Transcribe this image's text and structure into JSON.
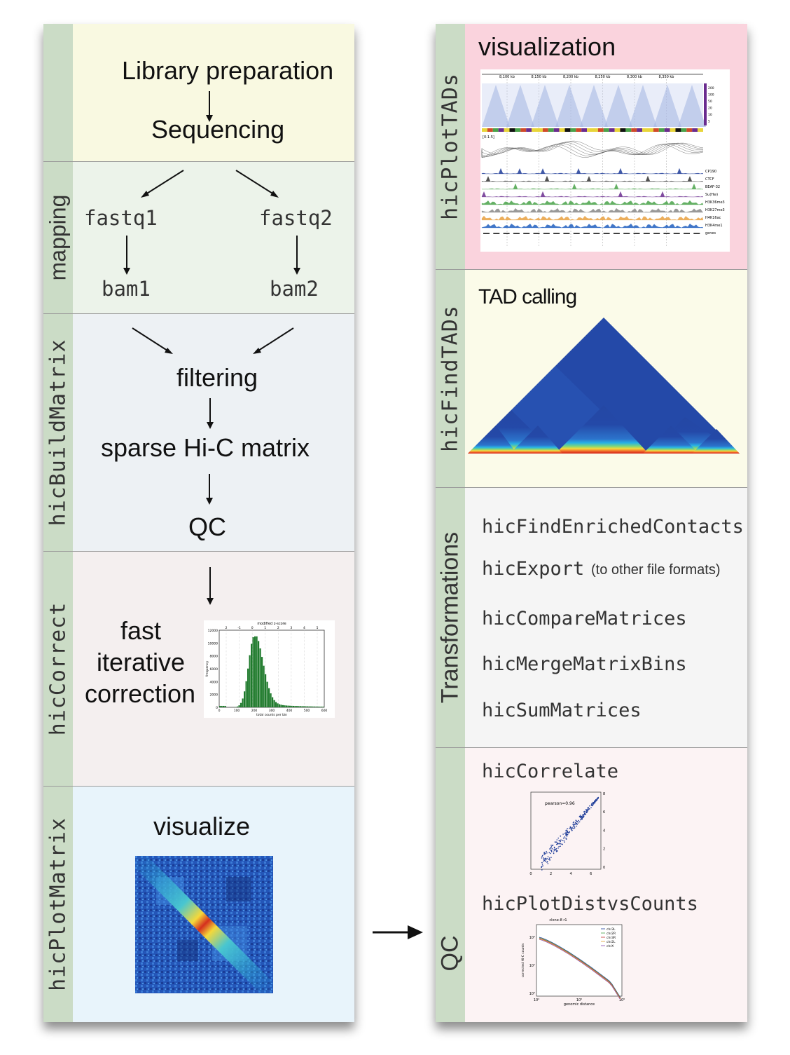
{
  "left": {
    "library": {
      "line1": "Library preparation",
      "line2": "Sequencing"
    },
    "mapping": {
      "label": "mapping",
      "fastq1": "fastq1",
      "fastq2": "fastq2",
      "bam1": "bam1",
      "bam2": "bam2"
    },
    "build": {
      "label": "hicBuildMatrix",
      "filtering": "filtering",
      "sparse": "sparse Hi-C matrix",
      "qc": "QC"
    },
    "correct": {
      "label": "hicCorrect",
      "line1": "fast",
      "line2": "iterative",
      "line3": "correction",
      "histogram": {
        "top_axis": "modified z-score",
        "top_ticks": [
          "2",
          "-1",
          "0",
          "1",
          "2",
          "3",
          "4",
          "5"
        ],
        "y_ticks": [
          "12000",
          "10000",
          "8000",
          "6000",
          "4000",
          "2000",
          "0"
        ],
        "x_ticks": [
          "0",
          "100",
          "200",
          "300",
          "400",
          "500",
          "600"
        ],
        "ylabel": "frequency",
        "xlabel": "total counts per bin"
      }
    },
    "plotmatrix": {
      "label": "hicPlotMatrix",
      "title": "visualize"
    }
  },
  "right": {
    "plottads": {
      "label": "hicPlotTADs",
      "title": "visualization",
      "browser": {
        "coords": [
          "8,100 kb",
          "8,150 kb",
          "8,200 kb",
          "8,250 kb",
          "8,300 kb",
          "8,350 kb"
        ],
        "scale": [
          "200",
          "100",
          "50",
          "20",
          "10",
          "5"
        ],
        "range_label": "[0-1.5]",
        "tracks": [
          "CP190",
          "CTCF",
          "BEAF-32",
          "Su(Hw)",
          "H3K36me3",
          "H3K27me3",
          "H4K16ac",
          "H3K4me1",
          "genes"
        ]
      }
    },
    "findtads": {
      "label": "hicFindTADs",
      "title": "TAD calling"
    },
    "transformations": {
      "label": "Transformations",
      "items": [
        "hicFindEnrichedContacts",
        "hicExport",
        "hicCompareMatrices",
        "hicMergeMatrixBins",
        "hicSumMatrices"
      ],
      "export_note": "(to other  file formats)"
    },
    "qc": {
      "label": "QC",
      "correlate": "hicCorrelate",
      "distvscounts": "hicPlotDistvsCounts",
      "scatter": {
        "annotation": "pearson=0.96",
        "x_ticks": [
          "0",
          "2",
          "4",
          "6"
        ],
        "y_ticks": [
          "8",
          "6",
          "4",
          "2",
          "0"
        ]
      },
      "decay": {
        "title": "clone-8 r1",
        "ylabel": "corrected Hi-C counts",
        "xlabel": "genomic distance",
        "legend": [
          "chr3L",
          "chr2R",
          "chr3R",
          "chr2L",
          "chrX"
        ],
        "y_ticks": [
          "10²",
          "10¹",
          "10⁰"
        ],
        "x_ticks": [
          "10⁴",
          "10⁵",
          "10⁶"
        ]
      }
    }
  },
  "colors": {
    "label_strip": "#cbdcc6",
    "library_bg": "#f9f9e1",
    "mapping_bg": "#ecf3ea",
    "build_bg": "#edf1f4",
    "correct_bg": "#f4efef",
    "plotmatrix_bg": "#e8f4fb",
    "plottads_bg": "#fad3dd",
    "findtads_bg": "#fbfbe9",
    "transform_bg": "#f5f5f5",
    "qc_bg": "#fcf3f4"
  }
}
